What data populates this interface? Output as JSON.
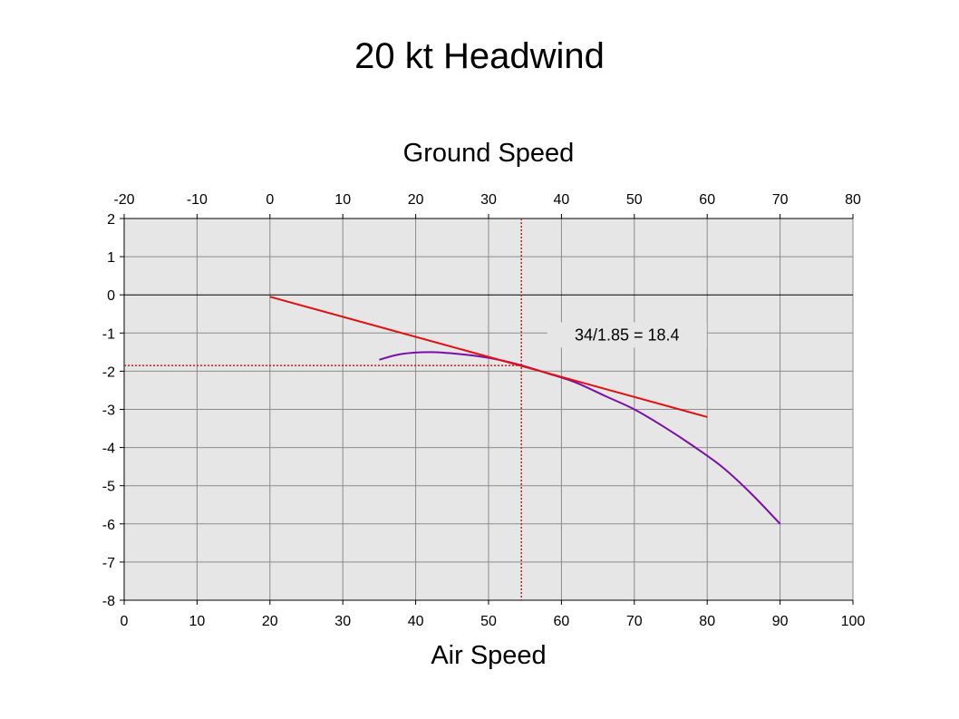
{
  "slide": {
    "title": "20 kt Headwind"
  },
  "chart_data": {
    "type": "line",
    "top_axis_title": "Ground Speed",
    "top_axis_ticks": [
      "-20",
      "-10",
      "0",
      "10",
      "20",
      "30",
      "40",
      "50",
      "60",
      "70",
      "80"
    ],
    "top_axis_range": [
      -20,
      80
    ],
    "xlabel": "Air Speed",
    "x_ticks": [
      "0",
      "10",
      "20",
      "30",
      "40",
      "50",
      "60",
      "70",
      "80",
      "90",
      "100"
    ],
    "xlim": [
      0,
      100
    ],
    "ylabel": "",
    "y_ticks": [
      "2",
      "1",
      "0",
      "-1",
      "-2",
      "-3",
      "-4",
      "-5",
      "-6",
      "-7",
      "-8"
    ],
    "ylim": [
      -8,
      2
    ],
    "grid": true,
    "plot_background": "#e6e6e6",
    "series": [
      {
        "color": "#7b0da8",
        "style": "curve",
        "points": [
          [
            35,
            -1.7
          ],
          [
            38,
            -1.55
          ],
          [
            42,
            -1.5
          ],
          [
            46,
            -1.55
          ],
          [
            50,
            -1.65
          ],
          [
            54,
            -1.82
          ],
          [
            58,
            -2.05
          ],
          [
            62,
            -2.3
          ],
          [
            66,
            -2.65
          ],
          [
            70,
            -3.0
          ],
          [
            74,
            -3.45
          ],
          [
            78,
            -3.95
          ],
          [
            82,
            -4.5
          ],
          [
            86,
            -5.2
          ],
          [
            90,
            -6.0
          ]
        ]
      },
      {
        "color": "#e01010",
        "style": "tangent",
        "points": [
          [
            20,
            -0.05
          ],
          [
            80,
            -3.2
          ]
        ]
      }
    ],
    "reference_lines": [
      {
        "orientation": "vertical",
        "x": 54.5,
        "color": "#e01010",
        "style": "dotted"
      },
      {
        "orientation": "horizontal",
        "y": -1.85,
        "color": "#e01010",
        "style": "dotted"
      }
    ],
    "annotation": {
      "text": "34/1.85 = 18.4",
      "x": 69,
      "y": -1.05
    }
  }
}
